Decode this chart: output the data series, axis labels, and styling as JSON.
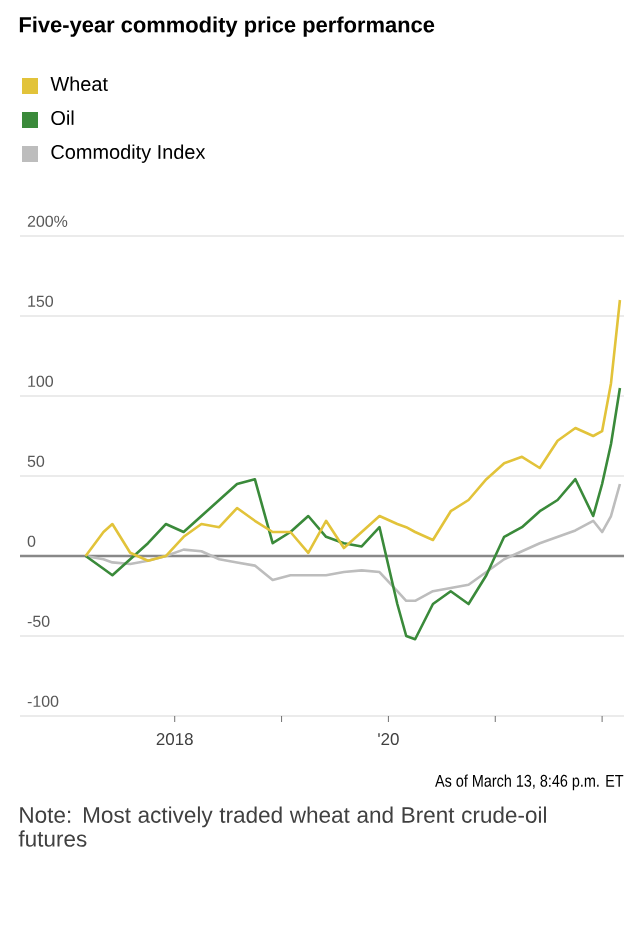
{
  "chart_data": {
    "type": "line",
    "title": "Five-year commodity price performance",
    "x": [
      "2017-03",
      "2017-05",
      "2017-06",
      "2017-08",
      "2017-10",
      "2017-12",
      "2018-02",
      "2018-04",
      "2018-06",
      "2018-08",
      "2018-10",
      "2018-12",
      "2019-02",
      "2019-04",
      "2019-06",
      "2019-08",
      "2019-10",
      "2019-12",
      "2020-02",
      "2020-03",
      "2020-04",
      "2020-06",
      "2020-08",
      "2020-10",
      "2020-12",
      "2021-02",
      "2021-04",
      "2021-06",
      "2021-08",
      "2021-10",
      "2021-12",
      "2022-01",
      "2022-02",
      "2022-03"
    ],
    "series": [
      {
        "name": "Wheat",
        "color": "#e2c33a",
        "values": [
          0,
          15,
          20,
          2,
          -3,
          0,
          12,
          20,
          18,
          30,
          22,
          15,
          15,
          2,
          22,
          5,
          15,
          25,
          20,
          18,
          15,
          10,
          28,
          35,
          48,
          58,
          62,
          55,
          72,
          80,
          75,
          78,
          108,
          160
        ]
      },
      {
        "name": "Oil",
        "color": "#3a8a3a",
        "values": [
          0,
          -8,
          -12,
          -2,
          8,
          20,
          15,
          25,
          35,
          45,
          48,
          8,
          15,
          25,
          12,
          8,
          6,
          18,
          -30,
          -50,
          -52,
          -30,
          -22,
          -30,
          -12,
          12,
          18,
          28,
          35,
          48,
          25,
          45,
          70,
          105
        ]
      },
      {
        "name": "Commodity Index",
        "color": "#bdbdbd",
        "values": [
          0,
          -2,
          -4,
          -5,
          -3,
          0,
          4,
          3,
          -2,
          -4,
          -6,
          -15,
          -12,
          -12,
          -12,
          -10,
          -9,
          -10,
          -22,
          -28,
          -28,
          -22,
          -20,
          -18,
          -10,
          -2,
          3,
          8,
          12,
          16,
          22,
          15,
          25,
          45
        ]
      }
    ],
    "xlim": [
      "2016-07-20",
      "2022-03-15"
    ],
    "xticks": [
      {
        "value": "2018-01",
        "label": "2018"
      },
      {
        "value": "2019-01",
        "label": null
      },
      {
        "value": "2020-01",
        "label": "'20"
      },
      {
        "value": "2021-01",
        "label": null
      },
      {
        "value": "2022-01",
        "label": null
      }
    ],
    "ylim": [
      -100,
      200
    ],
    "yticks": [
      -100,
      -50,
      0,
      50,
      100,
      150,
      {
        "value": 200,
        "label": "200%"
      }
    ],
    "grid": "y",
    "legend": "top left",
    "ref_lines": [
      {
        "axis": "y",
        "value": 0,
        "color": "#888888"
      }
    ],
    "annotations": [
      "As of March 13, 8:46 p.m. ET",
      "Note: Most actively traded wheat and Brent crude-oil futures"
    ]
  }
}
